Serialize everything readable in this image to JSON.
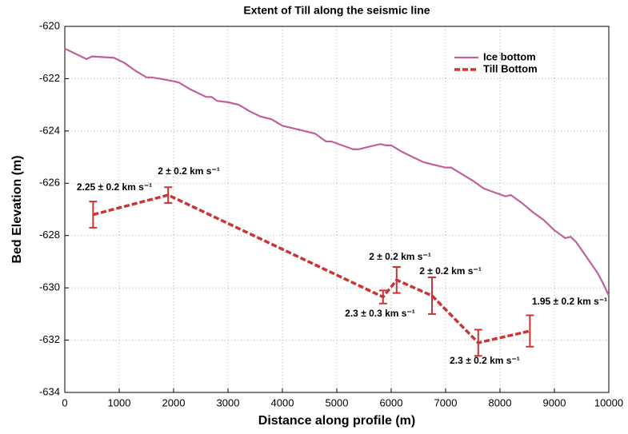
{
  "chart_data": {
    "type": "line",
    "title": "Extent of Till along the seismic line",
    "x_label": "Distance along profile (m)",
    "y_label": "Bed Elevation (m)",
    "xlim": [
      0,
      10000
    ],
    "xticks": [
      0,
      1000,
      2000,
      3000,
      4000,
      5000,
      6000,
      7000,
      8000,
      9000,
      10000
    ],
    "ylim": [
      -634,
      -620
    ],
    "yticks": [
      -620,
      -622,
      -624,
      -626,
      -628,
      -630,
      -632,
      -634
    ],
    "grid": true,
    "legend": "upper right",
    "series": [
      {
        "name": "Ice bottom",
        "color": "#c0609a",
        "x": [
          0,
          200,
          400,
          500,
          900,
          1100,
          1300,
          1500,
          1600,
          1800,
          2000,
          2100,
          2300,
          2500,
          2600,
          2700,
          2800,
          3000,
          3200,
          3400,
          3600,
          3700,
          3800,
          4000,
          4200,
          4400,
          4600,
          4800,
          4900,
          5100,
          5300,
          5400,
          5600,
          5800,
          5900,
          6000,
          6200,
          6400,
          6600,
          6800,
          7000,
          7100,
          7300,
          7500,
          7700,
          7900,
          8100,
          8200,
          8400,
          8600,
          8800,
          9000,
          9200,
          9300,
          9400,
          9600,
          9800,
          9900,
          10000
        ],
        "values": [
          -620.85,
          -621.05,
          -621.25,
          -621.15,
          -621.2,
          -621.4,
          -621.7,
          -621.95,
          -621.95,
          -622.02,
          -622.1,
          -622.15,
          -622.4,
          -622.6,
          -622.7,
          -622.7,
          -622.85,
          -622.9,
          -623.0,
          -623.25,
          -623.45,
          -623.5,
          -623.55,
          -623.8,
          -623.9,
          -624.0,
          -624.1,
          -624.4,
          -624.4,
          -624.55,
          -624.7,
          -624.7,
          -624.6,
          -624.5,
          -624.55,
          -624.55,
          -624.8,
          -625.0,
          -625.2,
          -625.3,
          -625.4,
          -625.4,
          -625.65,
          -625.9,
          -626.2,
          -626.35,
          -626.5,
          -626.45,
          -626.75,
          -627.1,
          -627.4,
          -627.8,
          -628.1,
          -628.05,
          -628.25,
          -628.85,
          -629.45,
          -629.85,
          -630.3
        ]
      },
      {
        "name": "Till Bottom",
        "color": "#cc3333",
        "x": [
          520,
          1900,
          5850,
          6100,
          6750,
          7600,
          8550
        ],
        "values": [
          -627.2,
          -626.45,
          -630.35,
          -629.7,
          -630.3,
          -632.1,
          -631.65
        ],
        "errors": [
          0.5,
          0.3,
          0.25,
          0.5,
          0.7,
          0.5,
          0.6
        ]
      }
    ],
    "annotations": [
      "2.25 ± 0.2 km s⁻¹",
      "2 ± 0.2 km s⁻¹",
      "2 ± 0.2 km s⁻¹",
      "2.3 ± 0.3 km s⁻¹",
      "2 ± 0.2 km s⁻¹",
      "2.3 ± 0.2 km s⁻¹",
      "1.95 ± 0.2 km s⁻¹"
    ]
  }
}
